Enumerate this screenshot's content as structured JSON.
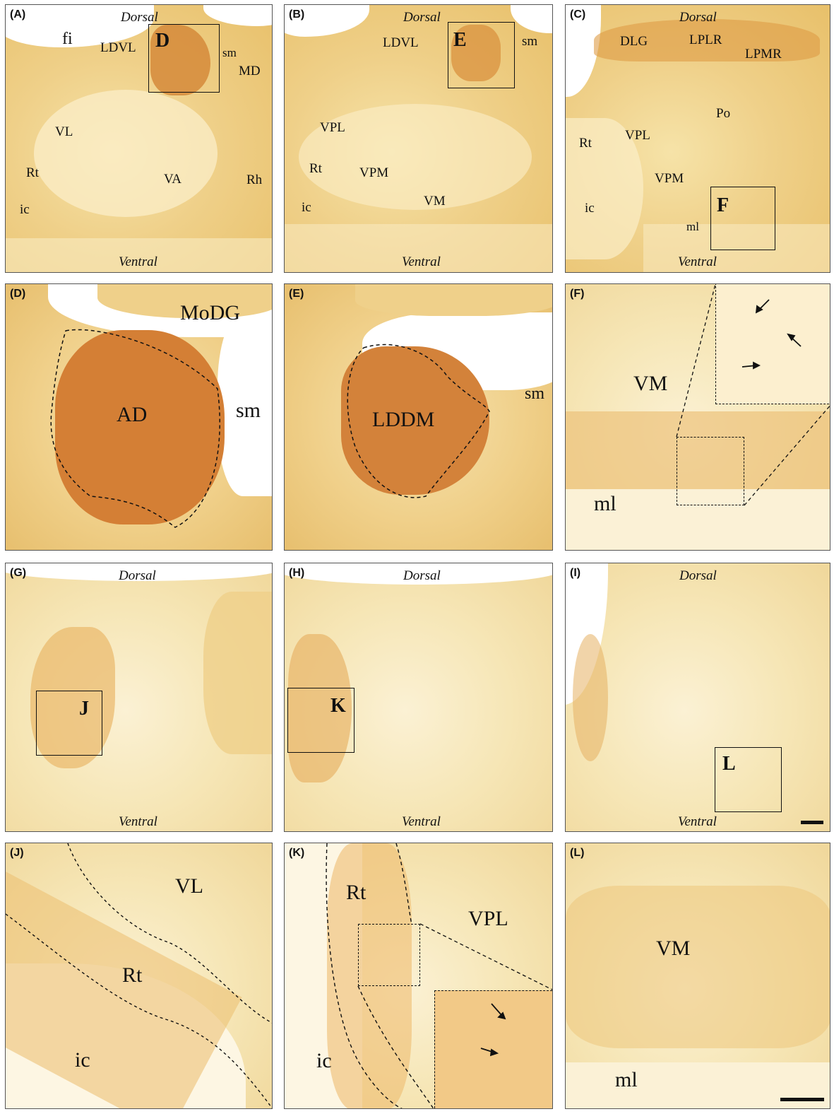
{
  "orientation": {
    "dorsal": "Dorsal",
    "ventral": "Ventral"
  },
  "panels": {
    "A": {
      "tag": "(A)",
      "labels": {
        "fi": "fi",
        "ldvl": "LDVL",
        "d": "D",
        "sm": "sm",
        "md": "MD",
        "vl": "VL",
        "rt": "Rt",
        "va": "VA",
        "rh": "Rh",
        "ic": "ic"
      }
    },
    "B": {
      "tag": "(B)",
      "labels": {
        "ldvl": "LDVL",
        "e": "E",
        "sm": "sm",
        "vpl": "VPL",
        "rt": "Rt",
        "vpm": "VPM",
        "vm": "VM",
        "ic": "ic"
      }
    },
    "C": {
      "tag": "(C)",
      "labels": {
        "dlg": "DLG",
        "lplr": "LPLR",
        "lpmr": "LPMR",
        "po": "Po",
        "rt": "Rt",
        "vpl": "VPL",
        "vpm": "VPM",
        "f": "F",
        "ic": "ic",
        "ml": "ml"
      }
    },
    "D": {
      "tag": "(D)",
      "labels": {
        "modg": "MoDG",
        "ad": "AD",
        "sm": "sm"
      }
    },
    "E": {
      "tag": "(E)",
      "labels": {
        "lddm": "LDDM",
        "sm": "sm"
      }
    },
    "F": {
      "tag": "(F)",
      "labels": {
        "vm": "VM",
        "ml": "ml"
      }
    },
    "G": {
      "tag": "(G)",
      "labels": {
        "j": "J"
      }
    },
    "H": {
      "tag": "(H)",
      "labels": {
        "k": "K"
      }
    },
    "I": {
      "tag": "(I)",
      "labels": {
        "l": "L"
      }
    },
    "J": {
      "tag": "(J)",
      "labels": {
        "vl": "VL",
        "rt": "Rt",
        "ic": "ic"
      }
    },
    "K": {
      "tag": "(K)",
      "labels": {
        "rt": "Rt",
        "vpl": "VPL",
        "ic": "ic"
      }
    },
    "L": {
      "tag": "(L)",
      "labels": {
        "vm": "VM",
        "ml": "ml"
      }
    }
  },
  "colors": {
    "stain": "#e8c06a",
    "dark_stain": "#c9722a",
    "fiber": "#fdf4dc",
    "background": "#ffffff"
  }
}
